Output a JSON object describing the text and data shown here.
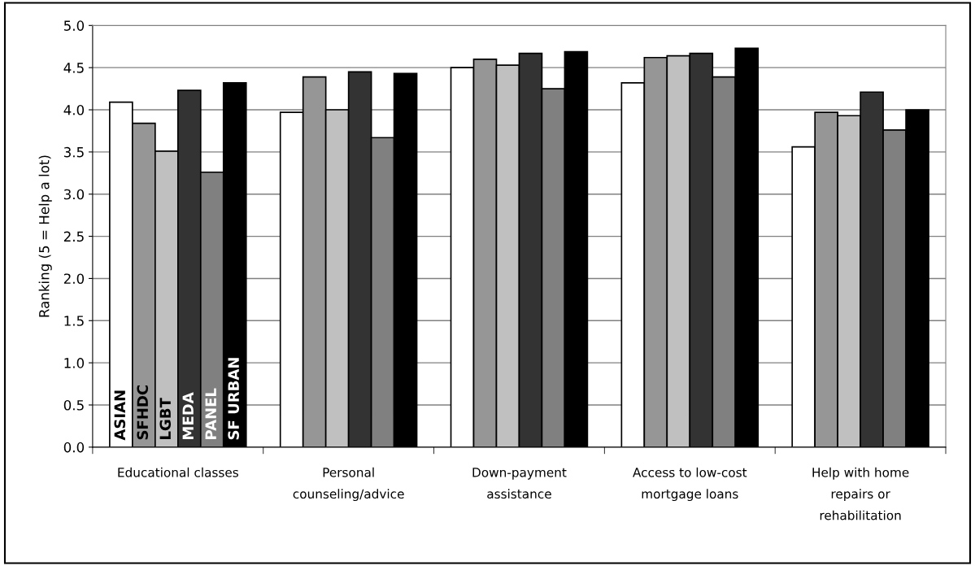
{
  "chart_data": {
    "type": "bar",
    "ylabel": "Ranking (5 = Help a lot)",
    "categories": [
      "Educational classes",
      "Personal\ncounseling/advice",
      "Down-payment\nassistance",
      "Access to low-cost\nmortgage loans",
      "Help with home\nrepairs or\nrehabilitation"
    ],
    "series": [
      {
        "name": "ASIAN",
        "color": "#ffffff",
        "values": [
          4.09,
          3.97,
          4.5,
          4.32,
          3.56
        ]
      },
      {
        "name": "SFHDC",
        "color": "#969696",
        "values": [
          3.84,
          4.39,
          4.6,
          4.62,
          3.97
        ]
      },
      {
        "name": "LGBT",
        "color": "#c0c0c0",
        "values": [
          3.51,
          4.0,
          4.53,
          4.64,
          3.93
        ]
      },
      {
        "name": "MEDA",
        "color": "#333333",
        "values": [
          4.23,
          4.45,
          4.67,
          4.67,
          4.21
        ]
      },
      {
        "name": "PANEL",
        "color": "#808080",
        "values": [
          3.26,
          3.67,
          4.25,
          4.39,
          3.76
        ]
      },
      {
        "name": "SF URBAN",
        "color": "#000000",
        "values": [
          4.32,
          4.43,
          4.69,
          4.73,
          4.0
        ]
      }
    ],
    "ylim": [
      0,
      5
    ],
    "yticks": [
      {
        "value": 0,
        "label": "0.0"
      },
      {
        "value": 0.5,
        "label": "0.5"
      },
      {
        "value": 1,
        "label": "1.0"
      },
      {
        "value": 1.5,
        "label": "1.5"
      },
      {
        "value": 2,
        "label": "2.0"
      },
      {
        "value": 2.5,
        "label": "2.5"
      },
      {
        "value": 3,
        "label": "3.0"
      },
      {
        "value": 3.5,
        "label": "3.5"
      },
      {
        "value": 4,
        "label": "4.0"
      },
      {
        "value": 4.5,
        "label": "4.5"
      },
      {
        "value": 5,
        "label": "5.0"
      }
    ],
    "grid": "y",
    "legend": false
  }
}
